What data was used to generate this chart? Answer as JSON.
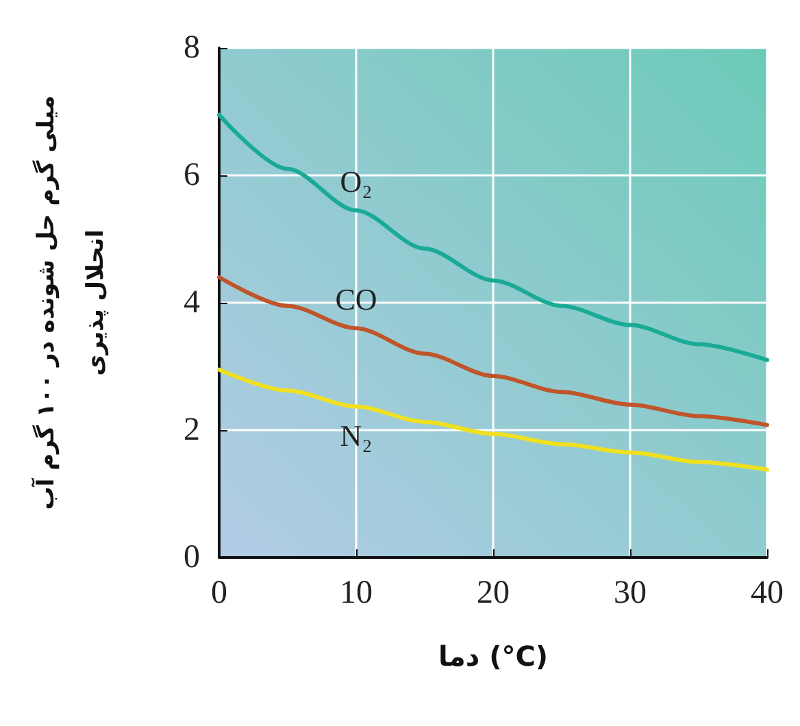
{
  "chart_data": {
    "type": "line",
    "xlabel": "دما (°C)",
    "ylabel": "میلی گرم حل شونده در ۱۰۰ گرم آب\nانحلال پذیری",
    "x": [
      0,
      5,
      10,
      15,
      20,
      25,
      30,
      35,
      40
    ],
    "series": [
      {
        "name": "O₂",
        "color": "#1aaa96",
        "values": [
          6.95,
          6.1,
          5.45,
          4.85,
          4.35,
          3.95,
          3.65,
          3.35,
          3.1
        ]
      },
      {
        "name": "CO",
        "color": "#c0542a",
        "values": [
          4.4,
          3.95,
          3.6,
          3.2,
          2.85,
          2.6,
          2.4,
          2.22,
          2.08
        ]
      },
      {
        "name": "N₂",
        "color": "#f0e020",
        "values": [
          2.95,
          2.62,
          2.37,
          2.13,
          1.94,
          1.78,
          1.65,
          1.5,
          1.38
        ]
      }
    ],
    "xlim": [
      0,
      40
    ],
    "xticks": [
      0,
      10,
      20,
      30,
      40
    ],
    "ylim": [
      0,
      8
    ],
    "yticks": [
      0,
      2,
      4,
      6,
      8
    ],
    "grid": true,
    "legend": false,
    "marker": "none",
    "line_style": "solid"
  }
}
